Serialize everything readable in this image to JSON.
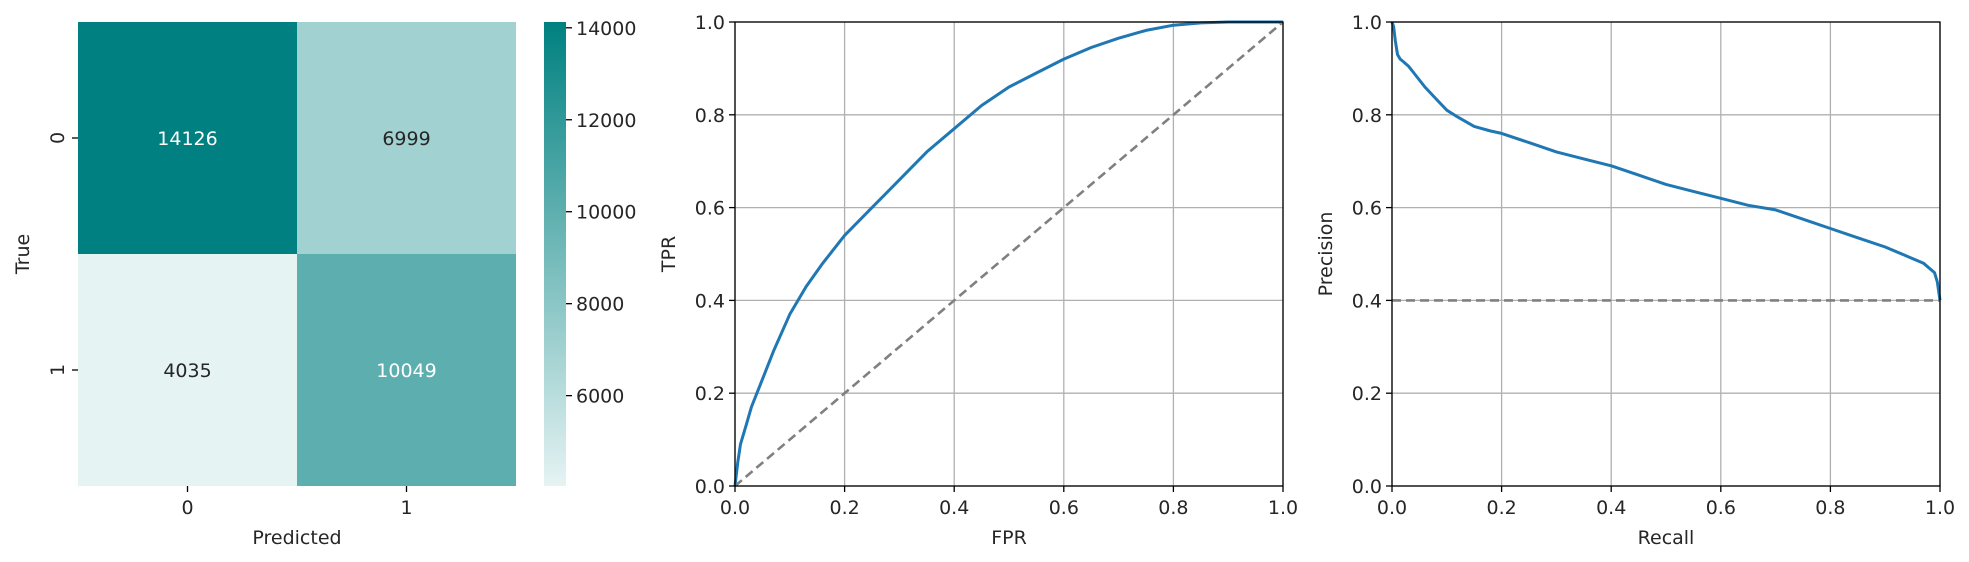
{
  "chart_data": [
    {
      "type": "heatmap",
      "title": "",
      "xlabel": "Predicted",
      "ylabel": "True",
      "x_categories": [
        "0",
        "1"
      ],
      "y_categories": [
        "0",
        "1"
      ],
      "values": [
        [
          14126,
          6999
        ],
        [
          4035,
          10049
        ]
      ],
      "colorbar": {
        "min": 4035,
        "max": 14126,
        "ticks": [
          6000,
          8000,
          10000,
          12000,
          14000
        ],
        "color_low": "#e6f3f3",
        "color_high": "#008080"
      },
      "text_color_light": "#ffffff",
      "text_color_dark": "#262626"
    },
    {
      "type": "line",
      "title": "",
      "xlabel": "FPR",
      "ylabel": "TPR",
      "xlim": [
        0,
        1
      ],
      "ylim": [
        0,
        1
      ],
      "xticks": [
        "0.0",
        "0.2",
        "0.4",
        "0.6",
        "0.8",
        "1.0"
      ],
      "yticks": [
        "0.0",
        "0.2",
        "0.4",
        "0.6",
        "0.8",
        "1.0"
      ],
      "grid": true,
      "series": [
        {
          "color": "#1f77b4",
          "style": "solid",
          "x": [
            0,
            0.005,
            0.01,
            0.02,
            0.03,
            0.05,
            0.07,
            0.1,
            0.13,
            0.16,
            0.2,
            0.25,
            0.3,
            0.35,
            0.4,
            0.45,
            0.5,
            0.55,
            0.6,
            0.65,
            0.7,
            0.75,
            0.8,
            0.85,
            0.9,
            0.95,
            1.0
          ],
          "y": [
            0,
            0.05,
            0.09,
            0.13,
            0.17,
            0.23,
            0.29,
            0.37,
            0.43,
            0.48,
            0.54,
            0.6,
            0.66,
            0.72,
            0.77,
            0.82,
            0.86,
            0.89,
            0.92,
            0.945,
            0.965,
            0.982,
            0.993,
            0.998,
            1.0,
            1.0,
            1.0
          ]
        },
        {
          "color": "#808080",
          "style": "dashed",
          "x": [
            0,
            1
          ],
          "y": [
            0,
            1
          ]
        }
      ]
    },
    {
      "type": "line",
      "title": "",
      "xlabel": "Recall",
      "ylabel": "Precision",
      "xlim": [
        0,
        1
      ],
      "ylim": [
        0,
        1
      ],
      "xticks": [
        "0.0",
        "0.2",
        "0.4",
        "0.6",
        "0.8",
        "1.0"
      ],
      "yticks": [
        "0.0",
        "0.2",
        "0.4",
        "0.6",
        "0.8",
        "1.0"
      ],
      "grid": true,
      "series": [
        {
          "color": "#1f77b4",
          "style": "solid",
          "x": [
            0.0,
            0.003,
            0.006,
            0.01,
            0.015,
            0.02,
            0.03,
            0.04,
            0.05,
            0.06,
            0.08,
            0.1,
            0.12,
            0.15,
            0.18,
            0.2,
            0.25,
            0.3,
            0.35,
            0.4,
            0.45,
            0.5,
            0.55,
            0.6,
            0.65,
            0.7,
            0.75,
            0.8,
            0.85,
            0.9,
            0.95,
            0.97,
            0.99,
            0.995,
            1.0
          ],
          "y": [
            1.0,
            0.99,
            0.96,
            0.93,
            0.92,
            0.915,
            0.905,
            0.89,
            0.875,
            0.86,
            0.835,
            0.81,
            0.795,
            0.775,
            0.765,
            0.76,
            0.74,
            0.72,
            0.705,
            0.69,
            0.67,
            0.65,
            0.635,
            0.62,
            0.605,
            0.595,
            0.575,
            0.555,
            0.535,
            0.515,
            0.49,
            0.48,
            0.46,
            0.44,
            0.4
          ]
        },
        {
          "color": "#808080",
          "style": "dashed",
          "x": [
            0,
            1
          ],
          "y": [
            0.4,
            0.4
          ]
        }
      ]
    }
  ]
}
